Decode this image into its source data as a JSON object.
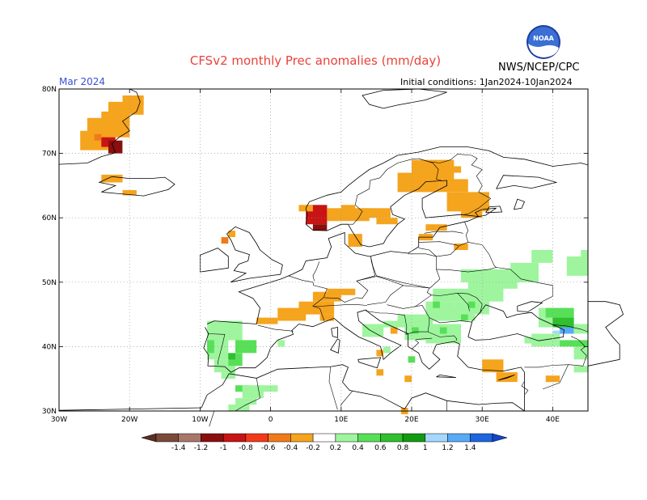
{
  "title": "CFSv2 monthly Prec anomalies (mm/day)",
  "agency": "NWS/NCEP/CPC",
  "logo_text": "NOAA",
  "month": "Mar 2024",
  "initial_conditions": "Initial conditions: 1Jan2024-10Jan2024",
  "lat_labels": [
    "80N",
    "70N",
    "60N",
    "50N",
    "40N",
    "30N"
  ],
  "lon_labels": [
    "30W",
    "20W",
    "10W",
    "0",
    "10E",
    "20E",
    "30E",
    "40E"
  ],
  "colorbar": {
    "labels": [
      "-1.4",
      "-1.2",
      "-1",
      "-0.8",
      "-0.6",
      "-0.4",
      "-0.2",
      "0.2",
      "0.4",
      "0.6",
      "0.8",
      "1",
      "1.2",
      "1.4"
    ],
    "colors": [
      "#7a4a3a",
      "#a8776a",
      "#8b0e0e",
      "#c81414",
      "#f23a1b",
      "#f07a1a",
      "#f5a41e",
      "#ffffff",
      "#9ef59e",
      "#57e057",
      "#2fbf2f",
      "#119b11",
      "#a6d8ff",
      "#59aaf5",
      "#1e66e0"
    ],
    "end_left_color": "#5a2f22",
    "end_right_color": "#1446c8"
  }
}
